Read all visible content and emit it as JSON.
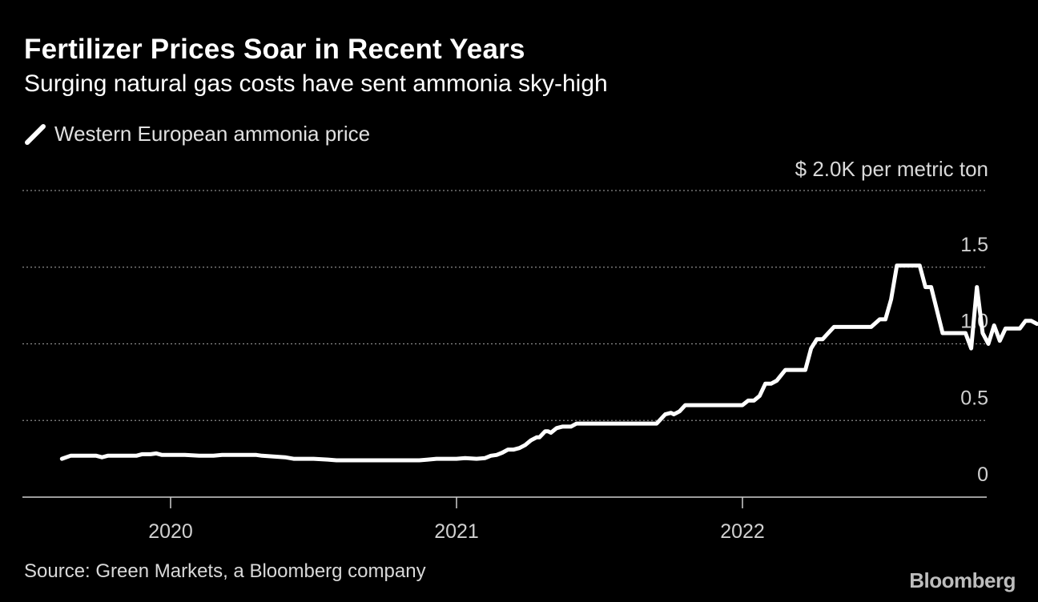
{
  "header": {
    "title": "Fertilizer Prices Soar in Recent Years",
    "subtitle": "Surging natural gas costs have sent ammonia sky-high"
  },
  "legend": {
    "label": "Western European ammonia price",
    "icon": "line-icon"
  },
  "footer": {
    "source": "Source: Green Markets, a Bloomberg company",
    "brand": "Bloomberg"
  },
  "colors": {
    "background": "#000000",
    "line": "#ffffff",
    "grid": "#8a8a8a",
    "text": "#d9d9d9"
  },
  "chart_data": {
    "type": "line",
    "title": "Fertilizer Prices Soar in Recent Years",
    "subtitle": "Surging natural gas costs have sent ammonia sky-high",
    "unit_label": "$ 2.0K per metric ton",
    "ylabel": "",
    "xlabel": "",
    "ylim": [
      0,
      2.0
    ],
    "y_ticks": [
      {
        "value": 0,
        "label": "0"
      },
      {
        "value": 0.5,
        "label": "0.5"
      },
      {
        "value": 1.0,
        "label": "1.0"
      },
      {
        "value": 1.5,
        "label": "1.5"
      },
      {
        "value": 2.0,
        "label": "$ 2.0K per metric ton"
      }
    ],
    "x_ticks": [
      {
        "value": 2020.0,
        "label": "2020"
      },
      {
        "value": 2021.0,
        "label": "2021"
      },
      {
        "value": 2022.0,
        "label": "2022"
      }
    ],
    "xlim": [
      2019.52,
      2022.9
    ],
    "grid": true,
    "legend_placement": "top-left",
    "series": [
      {
        "name": "Western European ammonia price",
        "points": [
          [
            2019.62,
            0.25
          ],
          [
            2019.65,
            0.27
          ],
          [
            2019.7,
            0.27
          ],
          [
            2019.74,
            0.27
          ],
          [
            2019.76,
            0.26
          ],
          [
            2019.78,
            0.27
          ],
          [
            2019.88,
            0.27
          ],
          [
            2019.9,
            0.28
          ],
          [
            2019.93,
            0.28
          ],
          [
            2019.95,
            0.285
          ],
          [
            2019.97,
            0.275
          ],
          [
            2020.0,
            0.275
          ],
          [
            2020.02,
            0.275
          ],
          [
            2020.05,
            0.275
          ],
          [
            2020.1,
            0.27
          ],
          [
            2020.15,
            0.27
          ],
          [
            2020.18,
            0.275
          ],
          [
            2020.3,
            0.275
          ],
          [
            2020.32,
            0.27
          ],
          [
            2020.4,
            0.26
          ],
          [
            2020.43,
            0.25
          ],
          [
            2020.5,
            0.25
          ],
          [
            2020.55,
            0.245
          ],
          [
            2020.58,
            0.24
          ],
          [
            2020.62,
            0.24
          ],
          [
            2020.7,
            0.24
          ],
          [
            2020.8,
            0.24
          ],
          [
            2020.87,
            0.24
          ],
          [
            2020.9,
            0.245
          ],
          [
            2020.93,
            0.25
          ],
          [
            2020.97,
            0.25
          ],
          [
            2021.0,
            0.25
          ],
          [
            2021.03,
            0.255
          ],
          [
            2021.07,
            0.25
          ],
          [
            2021.1,
            0.255
          ],
          [
            2021.12,
            0.27
          ],
          [
            2021.14,
            0.275
          ],
          [
            2021.16,
            0.29
          ],
          [
            2021.18,
            0.31
          ],
          [
            2021.2,
            0.31
          ],
          [
            2021.22,
            0.32
          ],
          [
            2021.24,
            0.34
          ],
          [
            2021.26,
            0.37
          ],
          [
            2021.28,
            0.39
          ],
          [
            2021.29,
            0.39
          ],
          [
            2021.3,
            0.41
          ],
          [
            2021.31,
            0.43
          ],
          [
            2021.32,
            0.43
          ],
          [
            2021.33,
            0.42
          ],
          [
            2021.35,
            0.45
          ],
          [
            2021.37,
            0.46
          ],
          [
            2021.4,
            0.46
          ],
          [
            2021.42,
            0.48
          ],
          [
            2021.45,
            0.48
          ],
          [
            2021.5,
            0.48
          ],
          [
            2021.55,
            0.48
          ],
          [
            2021.6,
            0.48
          ],
          [
            2021.65,
            0.48
          ],
          [
            2021.7,
            0.48
          ],
          [
            2021.73,
            0.54
          ],
          [
            2021.75,
            0.55
          ],
          [
            2021.76,
            0.54
          ],
          [
            2021.78,
            0.56
          ],
          [
            2021.8,
            0.6
          ],
          [
            2021.83,
            0.6
          ],
          [
            2021.88,
            0.6
          ],
          [
            2021.92,
            0.6
          ],
          [
            2021.95,
            0.6
          ],
          [
            2022.0,
            0.6
          ],
          [
            2022.02,
            0.63
          ],
          [
            2022.04,
            0.63
          ],
          [
            2022.06,
            0.66
          ],
          [
            2022.08,
            0.74
          ],
          [
            2022.1,
            0.74
          ],
          [
            2022.12,
            0.76
          ],
          [
            2022.15,
            0.83
          ],
          [
            2022.2,
            0.83
          ],
          [
            2022.22,
            0.83
          ],
          [
            2022.24,
            0.97
          ],
          [
            2022.26,
            1.03
          ],
          [
            2022.28,
            1.03
          ],
          [
            2022.3,
            1.07
          ],
          [
            2022.32,
            1.11
          ],
          [
            2022.35,
            1.11
          ],
          [
            2022.45,
            1.11
          ],
          [
            2022.48,
            1.16
          ],
          [
            2022.5,
            1.16
          ],
          [
            2022.52,
            1.29
          ],
          [
            2022.54,
            1.51
          ],
          [
            2022.6,
            1.51
          ],
          [
            2022.62,
            1.51
          ],
          [
            2022.64,
            1.37
          ],
          [
            2022.66,
            1.37
          ],
          [
            2022.7,
            1.07
          ],
          [
            2022.75,
            1.07
          ],
          [
            2022.78,
            1.07
          ],
          [
            2022.8,
            0.97
          ],
          [
            2022.82,
            1.37
          ],
          [
            2022.84,
            1.07
          ],
          [
            2022.86,
            1.0
          ],
          [
            2022.88,
            1.12
          ],
          [
            2022.9,
            1.02
          ],
          [
            2022.92,
            1.1
          ],
          [
            2022.94,
            1.1
          ],
          [
            2022.97,
            1.1
          ],
          [
            2022.99,
            1.15
          ],
          [
            2023.01,
            1.15
          ],
          [
            2023.03,
            1.13
          ]
        ]
      }
    ]
  }
}
